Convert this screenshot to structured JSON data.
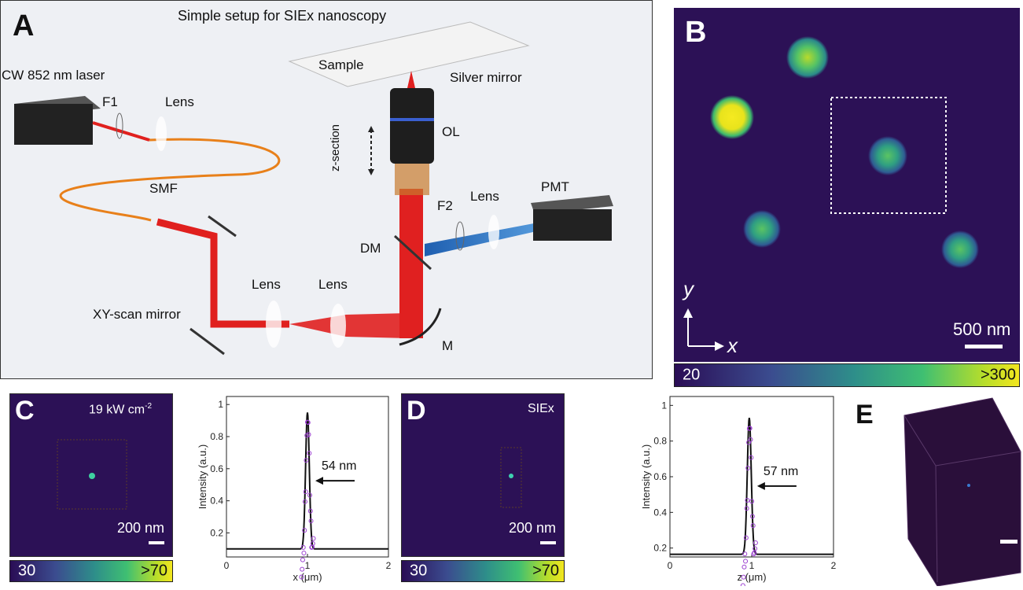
{
  "panels": {
    "a": {
      "letter": "A",
      "title": "Simple setup for SIEx nanoscopy",
      "labels": {
        "laser": "CW 852 nm laser",
        "f1": "F1",
        "lens_top": "Lens",
        "smf": "SMF",
        "sample": "Sample",
        "silver_mirror": "Silver mirror",
        "ol": "OL",
        "z_section": "z-section",
        "f2": "F2",
        "lens_pmt": "Lens",
        "pmt": "PMT",
        "dm": "DM",
        "lens1": "Lens",
        "lens2": "Lens",
        "xy_scan": "XY-scan mirror",
        "m": "M"
      }
    },
    "b": {
      "letter": "B",
      "axis_y": "y",
      "axis_x": "x",
      "scale_bar": "500 nm",
      "colorbar_min": "20",
      "colorbar_max": ">300"
    },
    "c": {
      "letter": "C",
      "power": "19 kW cm",
      "power_sup": "-2",
      "scale_bar": "200 nm",
      "colorbar_min": "30",
      "colorbar_max": ">70"
    },
    "d": {
      "letter": "D",
      "method": "SIEx",
      "scale_bar": "200 nm",
      "colorbar_min": "30",
      "colorbar_max": ">70"
    },
    "e": {
      "letter": "E"
    }
  },
  "chart_data": [
    {
      "type": "line",
      "xlabel": "x (μm)",
      "ylabel": "Intensity (a.u.)",
      "xlim": [
        0,
        2
      ],
      "ylim": [
        0.05,
        1.05
      ],
      "xticks": [
        "0",
        "1",
        "2"
      ],
      "yticks": [
        "0.2",
        "0.4",
        "0.6",
        "0.8",
        "1"
      ],
      "annotation": "54 nm",
      "fit": {
        "center": 1.0,
        "fwhm_um": 0.054,
        "baseline": 0.1,
        "peak": 0.95
      }
    },
    {
      "type": "line",
      "xlabel": "z (μm)",
      "ylabel": "Intensity (a.u.)",
      "xlim": [
        0,
        2
      ],
      "ylim": [
        0.15,
        1.05
      ],
      "xticks": [
        "0",
        "1",
        "2"
      ],
      "yticks": [
        "0.2",
        "0.4",
        "0.6",
        "0.8",
        "1"
      ],
      "annotation": "57 nm",
      "fit": {
        "center": 0.97,
        "fwhm_um": 0.057,
        "baseline": 0.165,
        "peak": 0.93
      }
    }
  ]
}
